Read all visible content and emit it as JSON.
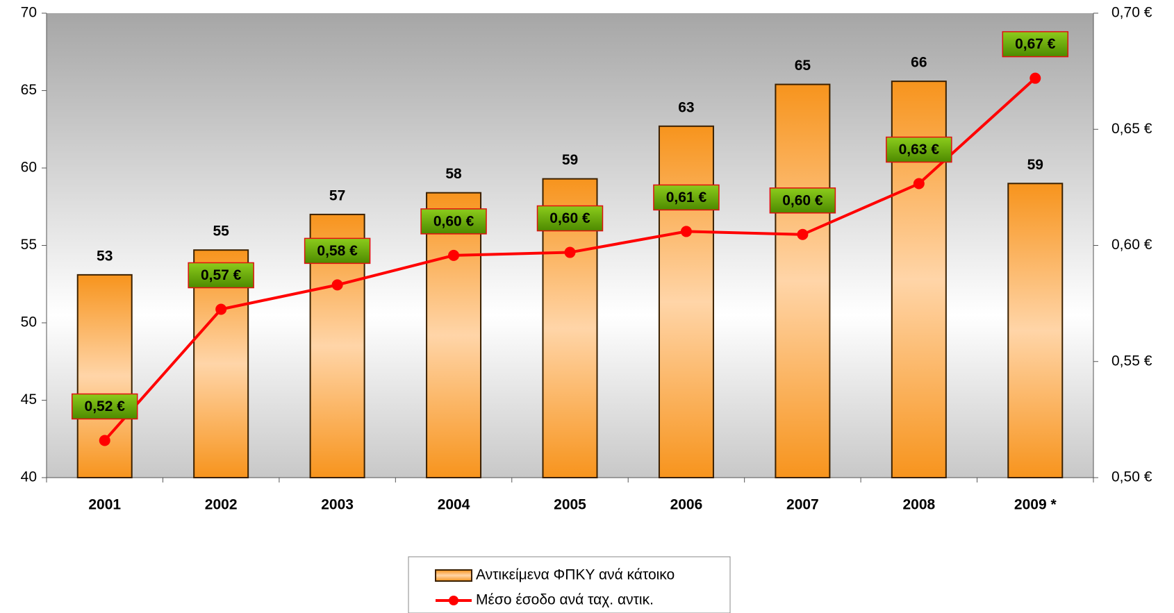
{
  "chart_data": {
    "type": "bar",
    "categories": [
      "2001",
      "2002",
      "2003",
      "2004",
      "2005",
      "2006",
      "2007",
      "2008",
      "2009 *"
    ],
    "series": [
      {
        "name": "Αντικείμενα ΦΠΚΥ ανά κάτοικο",
        "type": "bar",
        "color": "#f7941d",
        "values": [
          53.1,
          54.7,
          57.0,
          58.4,
          59.3,
          62.7,
          65.4,
          65.6,
          59.0
        ],
        "value_labels": [
          "53",
          "55",
          "57",
          "58",
          "59",
          "63",
          "65",
          "66",
          "59"
        ]
      },
      {
        "name": "Μέσο έσοδο ανά ταχ. αντικ.",
        "type": "line",
        "color": "#ff0000",
        "axis": "y2",
        "values": [
          0.516,
          0.5725,
          0.583,
          0.5957,
          0.597,
          0.606,
          0.6047,
          0.6266,
          0.672
        ],
        "value_labels": [
          "0,52 €",
          "0,57 €",
          "0,58 €",
          "0,60 €",
          "0,60 €",
          "0,61 €",
          "0,60 €",
          "0,63 €",
          "0,67 €"
        ]
      }
    ],
    "ylim": [
      40,
      70
    ],
    "yticks": [
      40,
      45,
      50,
      55,
      60,
      65,
      70
    ],
    "y2lim": [
      0.5,
      0.7
    ],
    "y2ticks": [
      {
        "value": 0.5,
        "label": "0,50 €"
      },
      {
        "value": 0.55,
        "label": "0,55 €"
      },
      {
        "value": 0.6,
        "label": "0,60 €"
      },
      {
        "value": 0.65,
        "label": "0,65 €"
      },
      {
        "value": 0.7,
        "label": "0,70 €"
      }
    ],
    "legend": "bottom"
  }
}
